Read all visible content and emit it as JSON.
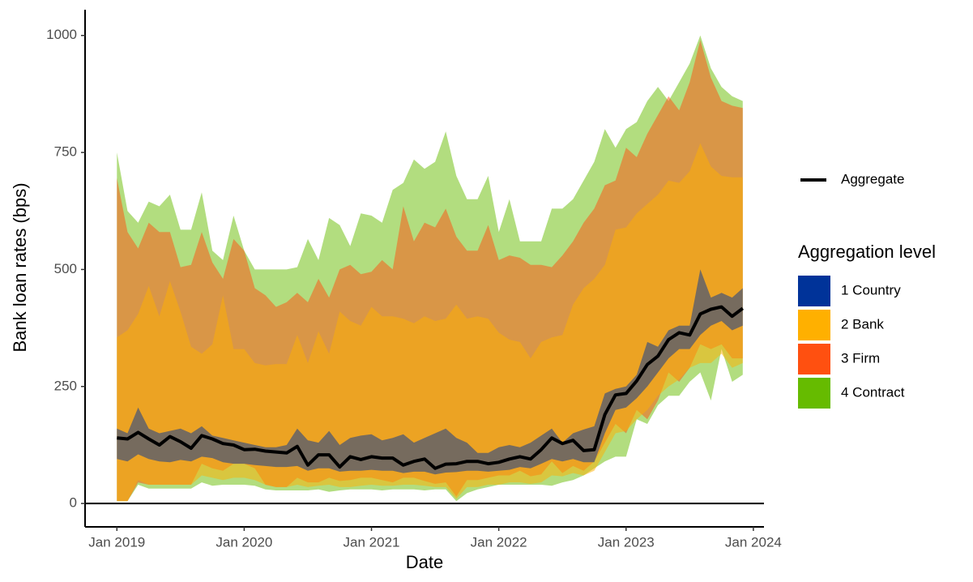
{
  "chart_data": {
    "type": "band",
    "x_label": "Date",
    "y_label": "Bank loan rates (bps)",
    "legend_title": "Aggregation level",
    "x": [
      "2019-01",
      "2019-02",
      "2019-03",
      "2019-04",
      "2019-05",
      "2019-06",
      "2019-07",
      "2019-08",
      "2019-09",
      "2019-10",
      "2019-11",
      "2019-12",
      "2020-01",
      "2020-02",
      "2020-03",
      "2020-04",
      "2020-05",
      "2020-06",
      "2020-07",
      "2020-08",
      "2020-09",
      "2020-10",
      "2020-11",
      "2020-12",
      "2021-01",
      "2021-02",
      "2021-03",
      "2021-04",
      "2021-05",
      "2021-06",
      "2021-07",
      "2021-08",
      "2021-09",
      "2021-10",
      "2021-11",
      "2021-12",
      "2022-01",
      "2022-02",
      "2022-03",
      "2022-04",
      "2022-05",
      "2022-06",
      "2022-07",
      "2022-08",
      "2022-09",
      "2022-10",
      "2022-11",
      "2022-12",
      "2023-01",
      "2023-02",
      "2023-03",
      "2023-04",
      "2023-05",
      "2023-06",
      "2023-07",
      "2023-08",
      "2023-09",
      "2023-10",
      "2023-11",
      "2023-12"
    ],
    "xlim": [
      "2018-10",
      "2024-02"
    ],
    "xticks": [
      {
        "value": "2019-01",
        "label": "Jan 2019"
      },
      {
        "value": "2020-01",
        "label": "Jan 2020"
      },
      {
        "value": "2021-01",
        "label": "Jan 2021"
      },
      {
        "value": "2022-01",
        "label": "Jan 2022"
      },
      {
        "value": "2023-01",
        "label": "Jan 2023"
      },
      {
        "value": "2024-01",
        "label": "Jan 2024"
      }
    ],
    "ylim": [
      -50,
      1055
    ],
    "yticks": [
      0,
      250,
      500,
      750,
      1000
    ],
    "hline": 0,
    "opacity": 0.5,
    "series": [
      {
        "name": "1 Country",
        "color": "#003399",
        "high": [
          160,
          150,
          205,
          160,
          150,
          155,
          160,
          150,
          165,
          145,
          140,
          135,
          130,
          125,
          120,
          120,
          125,
          160,
          135,
          130,
          155,
          125,
          140,
          145,
          148,
          135,
          140,
          148,
          130,
          140,
          150,
          160,
          140,
          130,
          108,
          108,
          120,
          125,
          120,
          130,
          145,
          160,
          130,
          150,
          158,
          165,
          235,
          245,
          250,
          275,
          345,
          335,
          370,
          380,
          380,
          500,
          440,
          450,
          440,
          460
        ],
        "low": [
          95,
          90,
          105,
          95,
          90,
          88,
          93,
          90,
          100,
          97,
          88,
          85,
          85,
          82,
          80,
          78,
          78,
          80,
          70,
          75,
          75,
          68,
          70,
          70,
          72,
          70,
          70,
          65,
          68,
          68,
          62,
          66,
          67,
          70,
          70,
          68,
          70,
          72,
          78,
          75,
          85,
          95,
          90,
          95,
          88,
          88,
          150,
          200,
          205,
          225,
          250,
          280,
          310,
          330,
          330,
          360,
          380,
          390,
          370,
          380
        ]
      },
      {
        "name": "2 Bank",
        "color": "#FFB000",
        "high": [
          355,
          370,
          405,
          465,
          400,
          475,
          410,
          335,
          320,
          340,
          445,
          330,
          330,
          300,
          295,
          298,
          298,
          360,
          300,
          368,
          320,
          410,
          390,
          380,
          420,
          400,
          400,
          395,
          385,
          400,
          390,
          395,
          425,
          395,
          400,
          395,
          365,
          350,
          345,
          310,
          345,
          355,
          360,
          425,
          460,
          480,
          510,
          585,
          590,
          620,
          640,
          660,
          690,
          685,
          710,
          770,
          720,
          700,
          697,
          697
        ],
        "low": [
          5,
          5,
          50,
          40,
          40,
          40,
          40,
          40,
          60,
          55,
          50,
          55,
          55,
          50,
          40,
          35,
          35,
          40,
          35,
          38,
          40,
          35,
          35,
          38,
          40,
          38,
          38,
          40,
          40,
          38,
          35,
          35,
          10,
          35,
          35,
          40,
          40,
          45,
          45,
          42,
          45,
          60,
          58,
          65,
          60,
          70,
          110,
          150,
          155,
          180,
          200,
          230,
          250,
          265,
          290,
          300,
          300,
          320,
          290,
          300
        ]
      },
      {
        "name": "3 Firm",
        "color": "#FF5010",
        "high": [
          695,
          580,
          545,
          600,
          580,
          580,
          505,
          510,
          580,
          515,
          480,
          565,
          540,
          460,
          445,
          420,
          430,
          450,
          430,
          480,
          440,
          500,
          510,
          490,
          495,
          520,
          500,
          635,
          560,
          600,
          590,
          630,
          570,
          540,
          540,
          595,
          520,
          530,
          525,
          510,
          510,
          505,
          530,
          560,
          600,
          630,
          680,
          690,
          760,
          740,
          790,
          830,
          870,
          840,
          900,
          990,
          910,
          860,
          850,
          845
        ],
        "low": [
          5,
          5,
          45,
          40,
          40,
          40,
          40,
          40,
          85,
          75,
          70,
          85,
          85,
          75,
          40,
          35,
          35,
          55,
          45,
          45,
          55,
          48,
          50,
          55,
          55,
          50,
          45,
          55,
          55,
          48,
          42,
          45,
          15,
          50,
          50,
          55,
          60,
          60,
          70,
          58,
          62,
          90,
          65,
          80,
          70,
          90,
          130,
          170,
          150,
          200,
          180,
          220,
          280,
          260,
          290,
          340,
          330,
          340,
          310,
          310
        ]
      },
      {
        "name": "4 Contract",
        "color": "#66BB00",
        "high": [
          750,
          625,
          600,
          645,
          635,
          660,
          585,
          585,
          665,
          540,
          520,
          615,
          540,
          500,
          500,
          500,
          500,
          505,
          565,
          520,
          610,
          595,
          550,
          620,
          615,
          600,
          670,
          685,
          735,
          715,
          730,
          795,
          700,
          650,
          650,
          700,
          580,
          650,
          560,
          560,
          560,
          630,
          630,
          650,
          690,
          730,
          800,
          760,
          800,
          815,
          860,
          890,
          860,
          900,
          940,
          1000,
          930,
          890,
          870,
          860
        ],
        "low": [
          5,
          5,
          40,
          32,
          32,
          32,
          32,
          32,
          45,
          38,
          40,
          40,
          40,
          38,
          30,
          28,
          28,
          28,
          28,
          30,
          25,
          28,
          30,
          30,
          30,
          28,
          30,
          30,
          30,
          28,
          30,
          30,
          5,
          22,
          30,
          35,
          40,
          40,
          40,
          40,
          40,
          38,
          45,
          50,
          60,
          75,
          90,
          100,
          100,
          180,
          170,
          210,
          230,
          230,
          260,
          280,
          220,
          330,
          260,
          275
        ]
      }
    ],
    "aggregate": {
      "name": "Aggregate",
      "color": "#000000",
      "values": [
        140,
        138,
        152,
        138,
        125,
        143,
        132,
        118,
        145,
        138,
        128,
        125,
        115,
        116,
        112,
        110,
        108,
        122,
        82,
        104,
        104,
        78,
        100,
        94,
        100,
        97,
        97,
        82,
        90,
        95,
        75,
        84,
        85,
        90,
        90,
        85,
        88,
        95,
        100,
        95,
        115,
        140,
        128,
        135,
        113,
        115,
        190,
        232,
        235,
        262,
        297,
        315,
        350,
        365,
        360,
        405,
        415,
        420,
        400,
        417
      ]
    }
  }
}
